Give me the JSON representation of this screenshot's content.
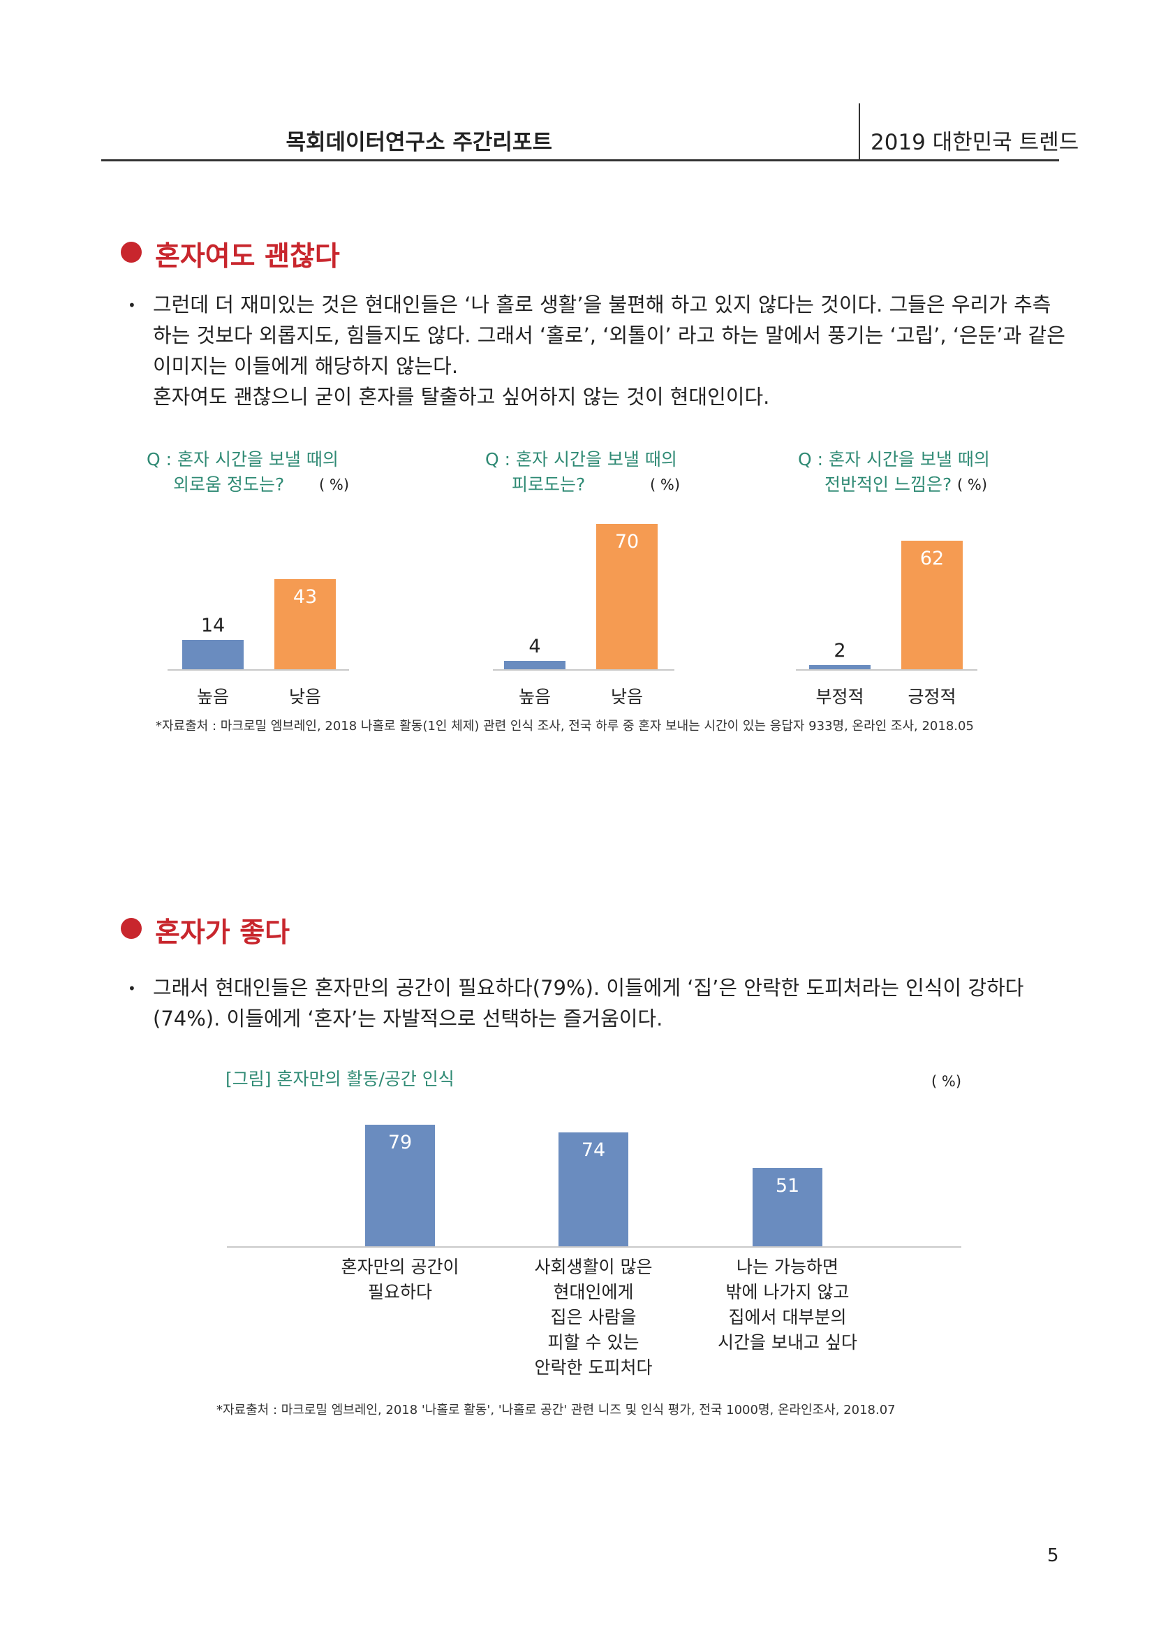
{
  "header": {
    "left": "목회데이터연구소 주간리포트",
    "right": "2019 대한민국 트렌드"
  },
  "section1": {
    "title": "혼자여도 괜찮다",
    "bullet": "•",
    "lines": [
      "그런데 더 재미있는 것은 현대인들은 ‘나 홀로 생활’을 불편해 하고 있지 않다는 것이다. 그들은 우리가 추측",
      "하는 것보다 외롭지도, 힘들지도 않다. 그래서 ‘홀로’, ‘외톨이’ 라고 하는 말에서 풍기는 ‘고립’, ‘은둔’과 같은",
      "이미지는 이들에게 해당하지 않는다.",
      "혼자여도 괜찮으니 굳이 혼자를 탈출하고 싶어하지 않는 것이 현대인이다."
    ],
    "source": "*자료출처 : 마크로밀 엠브레인, 2018 나홀로 활동(1인 체제) 관련 인식 조사, 전국 하루 중 혼자 보내는 시간이 있는 응답자 933명, 온라인 조사, 2018.05"
  },
  "section2": {
    "title": "혼자가 좋다",
    "bullet": "•",
    "lines": [
      "그래서 현대인들은   혼자만의 공간이 필요하다(79%). 이들에게 ‘집’은 안락한 도피처라는 인식이 강하다",
      "(74%). 이들에게 ‘혼자’는 자발적으로 선택하는 즐거움이다."
    ],
    "source": "*자료출처 : 마크로밀 엠브레인, 2018 '나홀로 활동', '나홀로 공간' 관련 니즈 및 인식 평가, 전국 1000명, 온라인조사, 2018.07"
  },
  "page_number": "5",
  "colors": {
    "accent_red": "#c8262d",
    "bar_blue": "#6a8cbf",
    "bar_orange": "#f59b52",
    "question_green": "#2f8a74"
  },
  "chart_data": [
    {
      "type": "bar",
      "title_lines": [
        "Q : 혼자 시간을 보낼 때의",
        "외로움 정도는?"
      ],
      "unit": "( %)",
      "categories": [
        "높음",
        "낮음"
      ],
      "values": [
        14,
        43
      ],
      "colors": [
        "#6a8cbf",
        "#f59b52"
      ],
      "ylim": [
        0,
        70
      ]
    },
    {
      "type": "bar",
      "title_lines": [
        "Q : 혼자 시간을 보낼 때의",
        "피로도는?"
      ],
      "unit": "( %)",
      "categories": [
        "높음",
        "낮음"
      ],
      "values": [
        4,
        70
      ],
      "colors": [
        "#6a8cbf",
        "#f59b52"
      ],
      "ylim": [
        0,
        70
      ]
    },
    {
      "type": "bar",
      "title_lines": [
        "Q : 혼자 시간을 보낼 때의",
        "전반적인 느낌은?"
      ],
      "unit": "( %)",
      "categories": [
        "부정적",
        "긍정적"
      ],
      "values": [
        2,
        62
      ],
      "colors": [
        "#6a8cbf",
        "#f59b52"
      ],
      "ylim": [
        0,
        70
      ]
    },
    {
      "type": "bar",
      "title": "[그림] 혼자만의 활동/공간 인식",
      "unit": "( %)",
      "categories": [
        [
          "혼자만의 공간이",
          "필요하다"
        ],
        [
          "사회생활이 많은",
          "현대인에게",
          "집은 사람을",
          "피할 수 있는",
          "안락한 도피처다"
        ],
        [
          "나는 가능하면",
          "밖에 나가지 않고",
          "집에서 대부분의",
          "시간을 보내고 싶다"
        ]
      ],
      "values": [
        79,
        74,
        51
      ],
      "colors": [
        "#6a8cbf",
        "#6a8cbf",
        "#6a8cbf"
      ],
      "ylim": [
        0,
        80
      ]
    }
  ]
}
